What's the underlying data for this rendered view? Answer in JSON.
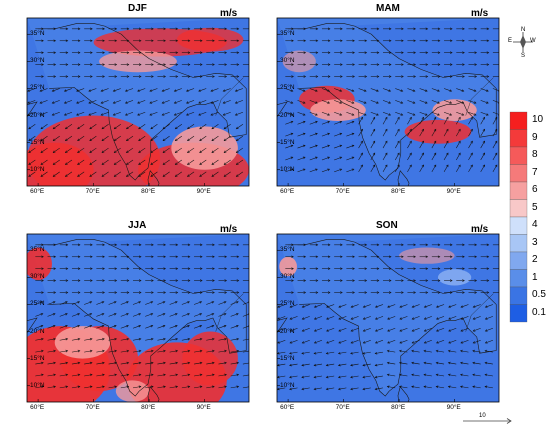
{
  "panels": [
    {
      "title": "DJF",
      "unit": "m/s"
    },
    {
      "title": "MAM",
      "unit": "m/s"
    },
    {
      "title": "JJA",
      "unit": "m/s"
    },
    {
      "title": "SON",
      "unit": "m/s"
    }
  ],
  "lat_ticks": [
    "35°N",
    "30°N",
    "25°N",
    "20°N",
    "15°N",
    "10°N"
  ],
  "lon_ticks": [
    "60°E",
    "70°E",
    "80°E",
    "90°E"
  ],
  "colorbar": {
    "labels": [
      "10",
      "9",
      "8",
      "7",
      "6",
      "5",
      "4",
      "3",
      "2",
      "1",
      "0.5",
      "0.1"
    ],
    "colors": [
      "#f51f1f",
      "#f43a3a",
      "#f55a5a",
      "#f57a7a",
      "#f6a0a0",
      "#f8c8c8",
      "#cfe0fb",
      "#a8c6f5",
      "#80a8ef",
      "#5a8ee9",
      "#3a74e4",
      "#1e5ee4"
    ]
  },
  "compass": {
    "n": "N",
    "e": "E",
    "s": "S",
    "w": "W"
  },
  "reference_vector": {
    "value": "10"
  },
  "colors": {
    "ocean_blue": "#3f76e4",
    "land_blue": "#4f86e8",
    "red": "#f03030",
    "pink": "#f59a9a"
  }
}
